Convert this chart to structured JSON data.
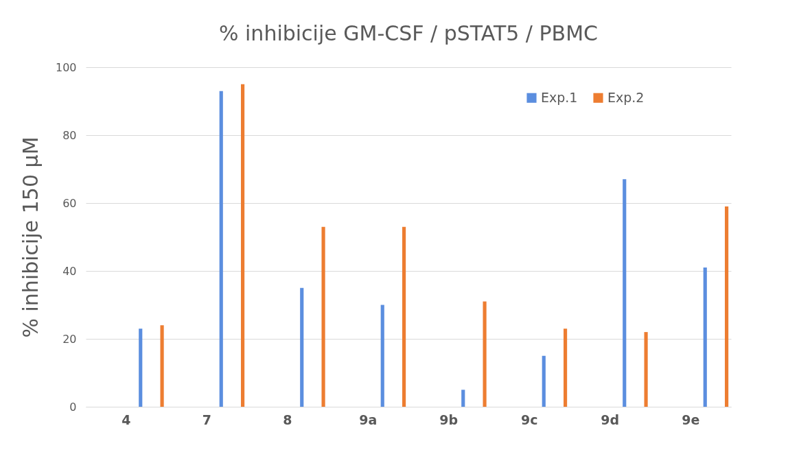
{
  "chart_data": {
    "type": "bar",
    "title": "% inhibicije  GM-CSF / pSTAT5 / PBMC",
    "ylabel": "% inhibicije  150 µM",
    "categories": [
      "4",
      "7",
      "8",
      "9a",
      "9b",
      "9c",
      "9d",
      "9e"
    ],
    "series": [
      {
        "name": "Exp.1",
        "color": "#5b8edf",
        "values": [
          23,
          93,
          35,
          30,
          5,
          15,
          67,
          41
        ]
      },
      {
        "name": "Exp.2",
        "color": "#ed7d31",
        "values": [
          24,
          95,
          53,
          53,
          31,
          23,
          22,
          59
        ]
      }
    ],
    "ylim": [
      0,
      100
    ],
    "yticks": [
      0,
      20,
      40,
      60,
      80,
      100
    ],
    "grid": "y",
    "legend": "top right"
  }
}
